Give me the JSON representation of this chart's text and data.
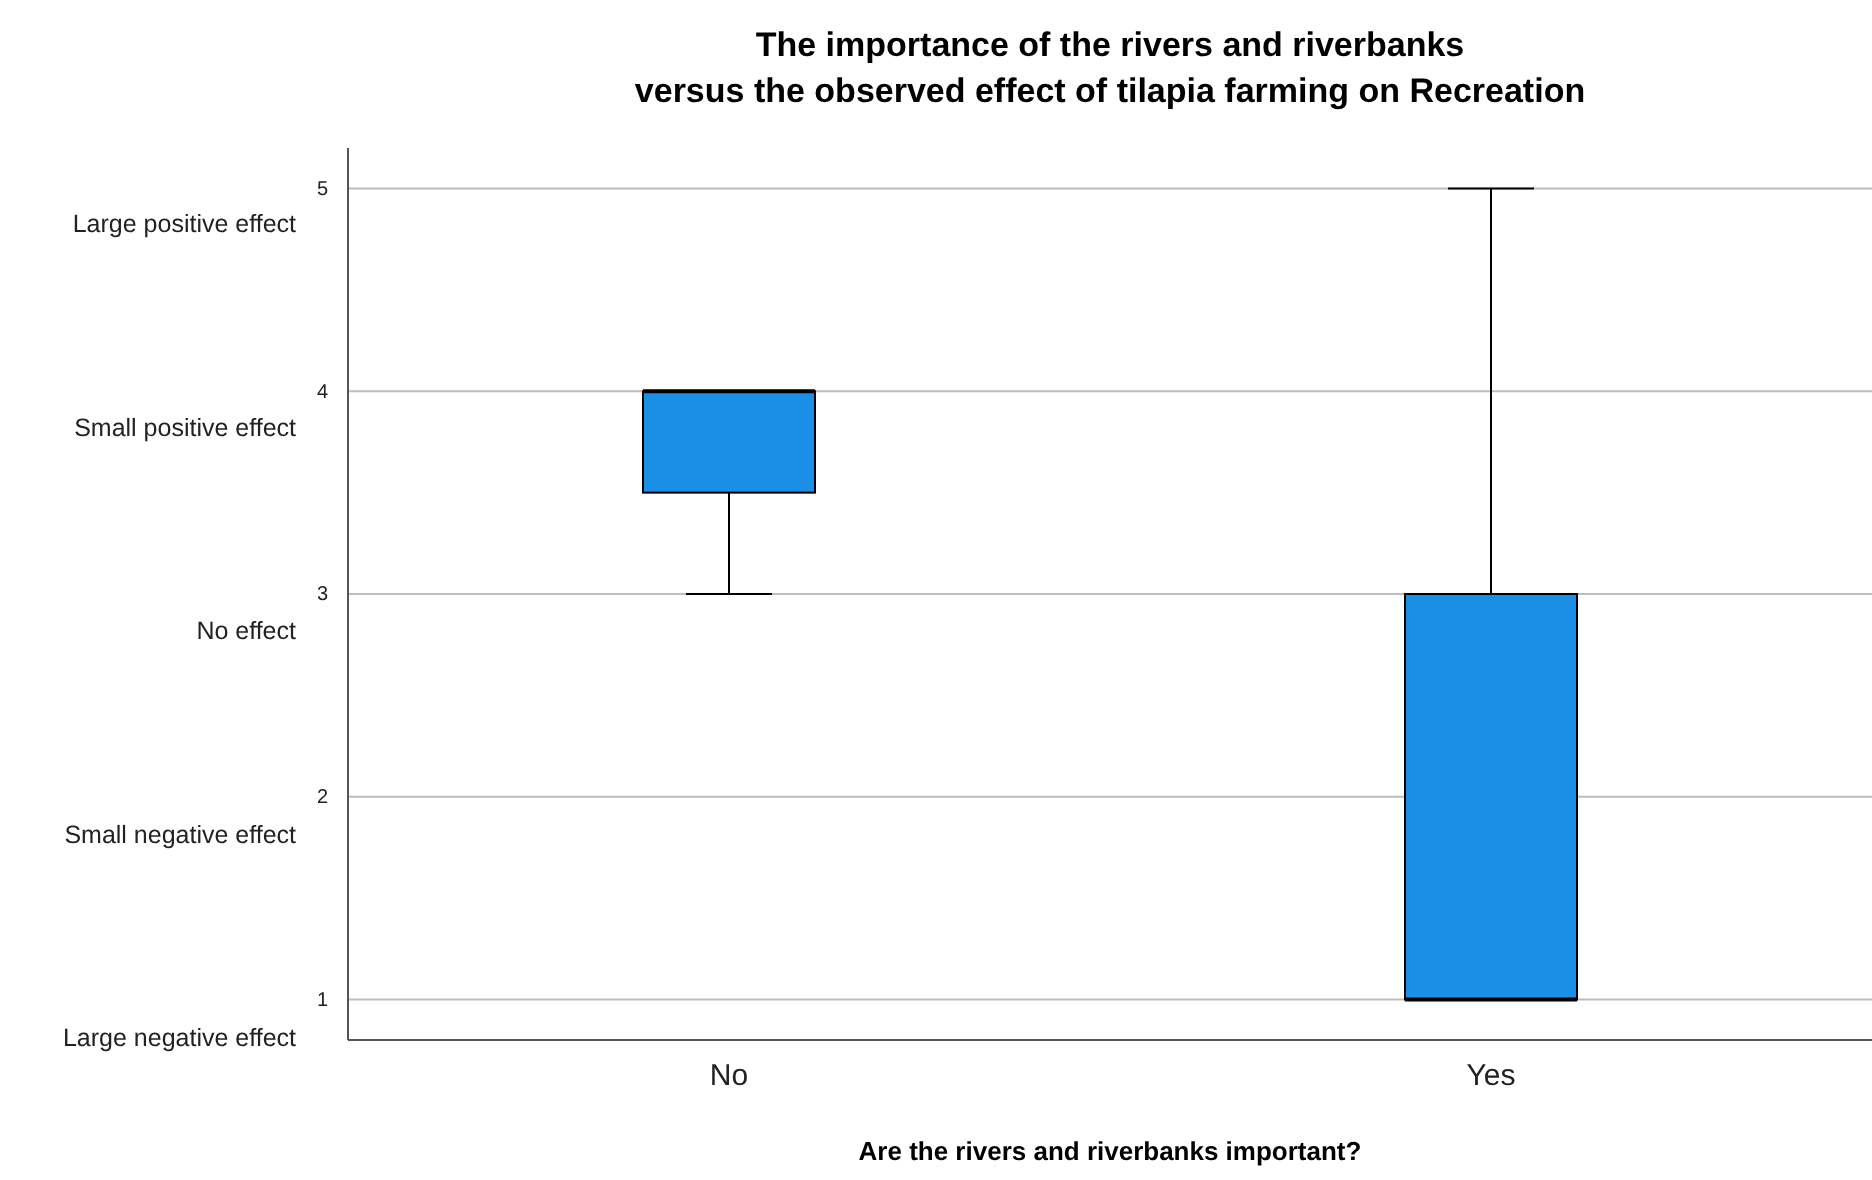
{
  "chart_data": {
    "type": "box",
    "title": "The importance of the rivers and riverbanks\nversus the observed effect of tilapia farming on Recreation",
    "xlabel": "Are the rivers and riverbanks important?",
    "categories": [
      "No",
      "Yes"
    ],
    "color": "#1b8fe6",
    "boxes": [
      {
        "low": 3,
        "q1": 3.5,
        "median": 4,
        "q3": 4,
        "high": 4
      },
      {
        "low": 1,
        "q1": 1,
        "median": 1,
        "q3": 3,
        "high": 5
      }
    ],
    "ylim": [
      0.8,
      5.2
    ],
    "yticks": [
      1,
      2,
      3,
      4,
      5
    ],
    "annotations": [
      "Large positive effect",
      "Small positive effect",
      "No effect",
      "Small negative effect",
      "Large negative effect"
    ],
    "grid": "y"
  }
}
